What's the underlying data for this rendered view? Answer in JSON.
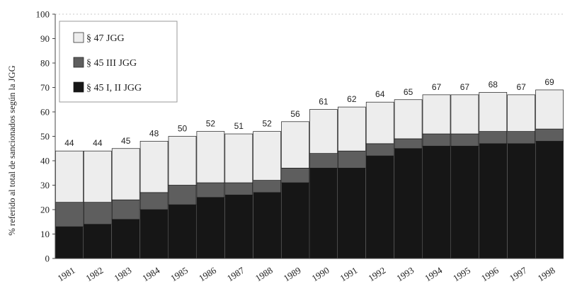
{
  "colors": {
    "s47": "#ededed",
    "s45iii": "#5e5e5e",
    "s45i": "#161616",
    "axis": "#444444",
    "grid": "#c8c8c8"
  },
  "chart_data": {
    "type": "bar",
    "stacked": true,
    "title": "",
    "xlabel": "",
    "ylabel": "% referido al total de sancionados según la JGG",
    "ylim": [
      0,
      100
    ],
    "yticks": [
      0,
      10,
      20,
      30,
      40,
      50,
      60,
      70,
      80,
      90,
      100
    ],
    "grid": "horizontal dotted line at 100",
    "legend_position": "top-left",
    "categories": [
      "1981",
      "1982",
      "1983",
      "1984",
      "1985",
      "1986",
      "1987",
      "1988",
      "1989",
      "1990",
      "1991",
      "1992",
      "1993",
      "1994",
      "1995",
      "1996",
      "1997",
      "1998"
    ],
    "series": [
      {
        "name": "§ 45 I, II JGG",
        "key": "s45i",
        "values": [
          13,
          14,
          16,
          20,
          22,
          25,
          26,
          27,
          31,
          37,
          37,
          42,
          45,
          46,
          46,
          47,
          47,
          48
        ]
      },
      {
        "name": "§ 45 III JGG",
        "key": "s45iii",
        "values": [
          10,
          9,
          8,
          7,
          8,
          6,
          5,
          5,
          6,
          6,
          7,
          5,
          4,
          5,
          5,
          5,
          5,
          5
        ]
      },
      {
        "name": "§ 47 JGG",
        "key": "s47",
        "values": [
          21,
          21,
          21,
          21,
          20,
          21,
          20,
          20,
          19,
          18,
          18,
          17,
          16,
          16,
          16,
          16,
          15,
          16
        ]
      }
    ],
    "totals": [
      44,
      44,
      45,
      48,
      50,
      52,
      51,
      52,
      56,
      61,
      62,
      64,
      65,
      67,
      67,
      68,
      67,
      69
    ]
  }
}
